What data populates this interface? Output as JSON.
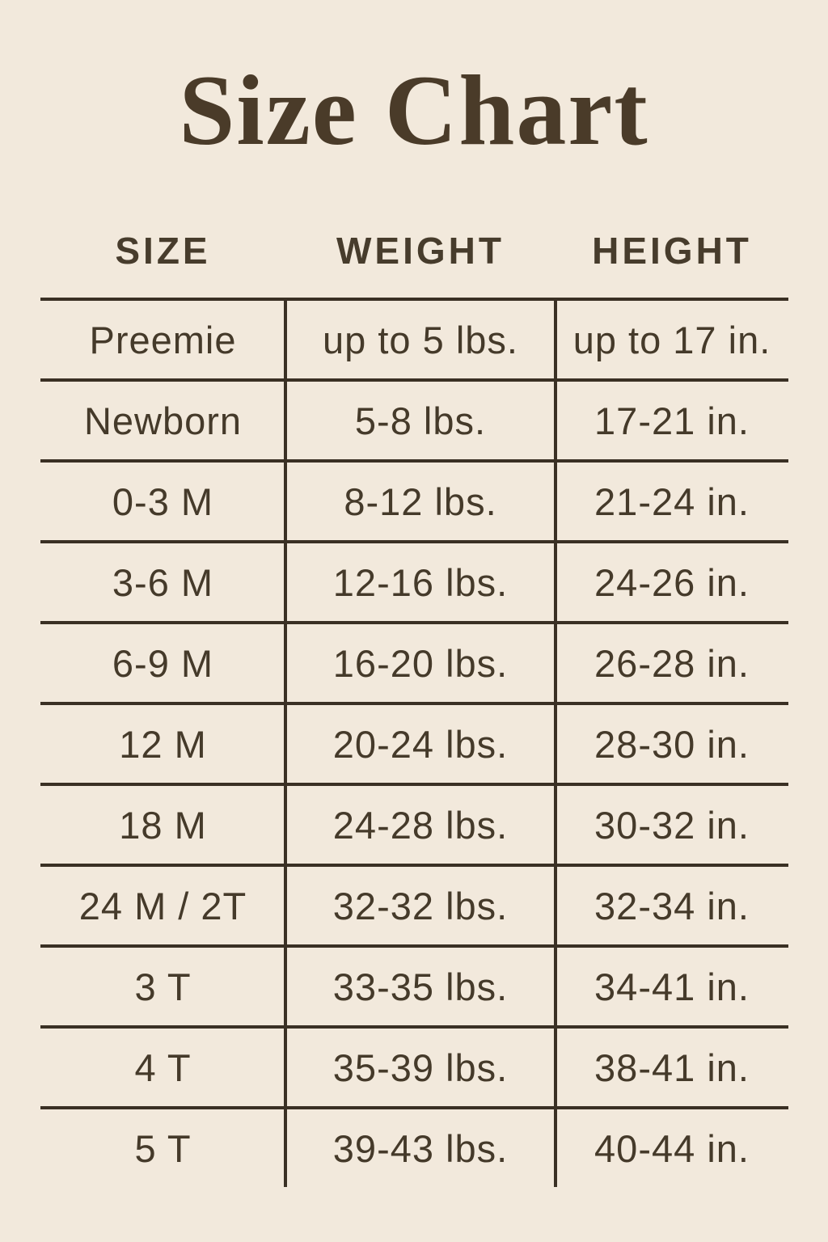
{
  "title": "Size Chart",
  "colors": {
    "background": "#f2e9dc",
    "text": "#453a2a",
    "title_text": "#4a3b29",
    "rule_lines": "#3a3024"
  },
  "chart_data": {
    "type": "table",
    "title": "Size Chart",
    "headers": [
      "SIZE",
      "WEIGHT",
      "HEIGHT"
    ],
    "rows": [
      [
        "Preemie",
        "up to 5 lbs.",
        "up to 17 in."
      ],
      [
        "Newborn",
        "5-8 lbs.",
        "17-21 in."
      ],
      [
        "0-3 M",
        "8-12 lbs.",
        "21-24 in."
      ],
      [
        "3-6 M",
        "12-16 lbs.",
        "24-26 in."
      ],
      [
        "6-9 M",
        "16-20 lbs.",
        "26-28 in."
      ],
      [
        "12 M",
        "20-24 lbs.",
        "28-30 in."
      ],
      [
        "18 M",
        "24-28 lbs.",
        "30-32 in."
      ],
      [
        "24 M / 2T",
        "32-32 lbs.",
        "32-34 in."
      ],
      [
        "3 T",
        "33-35 lbs.",
        "34-41 in."
      ],
      [
        "4 T",
        "35-39 lbs.",
        "38-41 in."
      ],
      [
        "5 T",
        "39-43 lbs.",
        "40-44 in."
      ]
    ],
    "layout": {
      "grid": "horizontal row separators and vertical column dividers, no outer box, no bottom rule",
      "alignment": "all cells centered"
    }
  }
}
